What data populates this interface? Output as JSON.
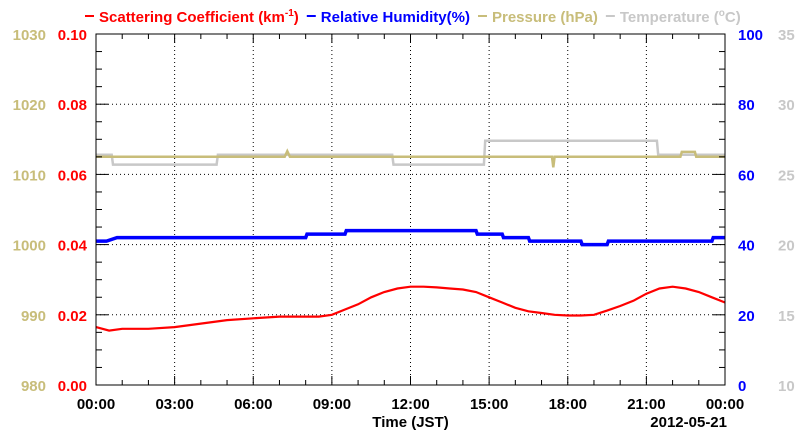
{
  "chart_data": {
    "type": "line",
    "date_label": "2012-05-21",
    "xlabel": "Time (JST)",
    "x_ticks": [
      "00:00",
      "03:00",
      "06:00",
      "09:00",
      "12:00",
      "15:00",
      "18:00",
      "21:00",
      "00:00"
    ],
    "xlim_hours": [
      0,
      24
    ],
    "grid": true,
    "legend_placement": "top",
    "axes": [
      {
        "id": "pressure",
        "side": "left-outer",
        "color": "#c8bd7a",
        "ylim": [
          980,
          1030
        ],
        "ticks": [
          980,
          990,
          1000,
          1010,
          1020,
          1030
        ]
      },
      {
        "id": "scattering",
        "side": "left-inner",
        "color": "#ff0000",
        "ylim": [
          0,
          0.1
        ],
        "ticks": [
          "0.00",
          "0.02",
          "0.04",
          "0.06",
          "0.08",
          "0.10"
        ]
      },
      {
        "id": "humidity",
        "side": "right-inner",
        "color": "#0000ff",
        "ylim": [
          0,
          100
        ],
        "ticks": [
          0,
          20,
          40,
          60,
          80,
          100
        ]
      },
      {
        "id": "temperature",
        "side": "right-outer",
        "color": "#c8c8c8",
        "ylim": [
          10,
          35
        ],
        "ticks": [
          10,
          15,
          20,
          25,
          30,
          35
        ]
      }
    ],
    "series": [
      {
        "name": "Scattering Coefficient (km-1)",
        "legend_main": "Scattering Coefficient (km",
        "legend_sup": "-1",
        "legend_close": ")",
        "axis": "scattering",
        "color": "#ff0000",
        "x": [
          0,
          0.5,
          1,
          2,
          3,
          4,
          5,
          6,
          7,
          8,
          8.5,
          9,
          9.5,
          10,
          10.5,
          11,
          11.5,
          12,
          12.5,
          13,
          13.5,
          14,
          14.5,
          15,
          15.5,
          16,
          16.5,
          17,
          17.5,
          18,
          18.5,
          19,
          19.5,
          20,
          20.5,
          21,
          21.5,
          22,
          22.5,
          23,
          23.5,
          24
        ],
        "y": [
          0.0165,
          0.0155,
          0.016,
          0.016,
          0.0165,
          0.0175,
          0.0185,
          0.019,
          0.0195,
          0.0195,
          0.0195,
          0.02,
          0.0215,
          0.023,
          0.025,
          0.0265,
          0.0275,
          0.028,
          0.028,
          0.0278,
          0.0275,
          0.0272,
          0.0265,
          0.025,
          0.0235,
          0.022,
          0.021,
          0.0205,
          0.02,
          0.0198,
          0.0198,
          0.02,
          0.0212,
          0.0225,
          0.024,
          0.026,
          0.0275,
          0.028,
          0.0275,
          0.0265,
          0.025,
          0.0235
        ]
      },
      {
        "name": "Relative Humidity(%)",
        "axis": "humidity",
        "color": "#0000ff",
        "x": [
          0,
          0.4,
          0.8,
          2,
          4,
          6,
          8,
          8.05,
          9.5,
          9.55,
          12,
          14,
          14.5,
          14.55,
          15.5,
          15.55,
          16.5,
          16.55,
          18,
          18.5,
          18.55,
          19.5,
          19.55,
          21,
          23,
          23.5,
          23.55,
          24
        ],
        "y": [
          41,
          41,
          42,
          42,
          42,
          42,
          42,
          43,
          43,
          44,
          44,
          44,
          44,
          43,
          43,
          42,
          42,
          41,
          41,
          41,
          40,
          40,
          41,
          41,
          41,
          41,
          42,
          42
        ]
      },
      {
        "name": "Pressure (hPa)",
        "axis": "pressure",
        "color": "#c8bd7a",
        "x": [
          0,
          2,
          4,
          7,
          7.2,
          7.3,
          7.4,
          10,
          11.5,
          14,
          16,
          17.4,
          17.45,
          17.5,
          19,
          21,
          22.3,
          22.35,
          22.85,
          22.9,
          24
        ],
        "y": [
          1012.5,
          1012.5,
          1012.5,
          1012.5,
          1012.5,
          1013.3,
          1012.5,
          1012.5,
          1012.5,
          1012.5,
          1012.5,
          1012.5,
          1011,
          1012.5,
          1012.5,
          1012.5,
          1012.5,
          1013.2,
          1013.2,
          1012.5,
          1012.5
        ]
      },
      {
        "name": "Temperature (C)",
        "legend_main": "Temperature (",
        "legend_sup": "o",
        "legend_close": "C)",
        "axis": "temperature",
        "color": "#c8c8c8",
        "x": [
          0,
          0.6,
          0.65,
          4.6,
          4.65,
          11.3,
          11.35,
          14.8,
          14.85,
          21.4,
          21.45,
          22,
          22.05,
          24
        ],
        "y": [
          26.4,
          26.4,
          25.7,
          25.7,
          26.4,
          26.4,
          25.7,
          25.7,
          27.4,
          27.4,
          26.4,
          26.4,
          26.4,
          26.4
        ]
      }
    ]
  }
}
